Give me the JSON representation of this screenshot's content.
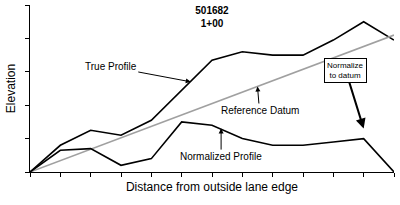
{
  "chart_data": {
    "type": "line",
    "title": "501682",
    "subtitle": "1+00",
    "x_label": "Distance from outside lane edge",
    "y_label": "Elevation",
    "x": [
      0,
      1,
      2,
      3,
      4,
      5,
      6,
      7,
      8,
      9,
      10,
      11,
      12
    ],
    "series": [
      {
        "name": "True Profile",
        "color": "#000000",
        "line_style": "solid",
        "values": [
          0,
          0.8,
          1.25,
          1.1,
          1.55,
          2.45,
          3.35,
          3.6,
          3.5,
          3.5,
          3.95,
          4.5,
          3.95
        ]
      },
      {
        "name": "Reference Datum",
        "color": "#a0a0a0",
        "line_style": "solid",
        "x": [
          0,
          12
        ],
        "values": [
          0,
          4.1
        ]
      },
      {
        "name": "Normalized Profile",
        "color": "#000000",
        "line_style": "solid",
        "values": [
          0,
          0.65,
          0.7,
          0.2,
          0.4,
          1.5,
          1.4,
          1.0,
          0.8,
          0.8,
          0.9,
          1.0,
          0
        ]
      }
    ],
    "annotations": [
      {
        "text": "True Profile"
      },
      {
        "text": "Reference Datum"
      },
      {
        "text": "Normalized Profile"
      },
      {
        "text": [
          "Normalize",
          "to datum"
        ]
      }
    ],
    "xlim": [
      0,
      12
    ],
    "xticks": [
      0,
      1,
      2,
      3,
      4,
      5,
      6,
      7,
      8,
      9,
      10,
      11,
      12
    ],
    "ylim": [
      0,
      5
    ],
    "yticks": [
      0,
      1,
      2,
      3,
      4,
      5
    ],
    "grid": false,
    "tick_labels": false
  }
}
